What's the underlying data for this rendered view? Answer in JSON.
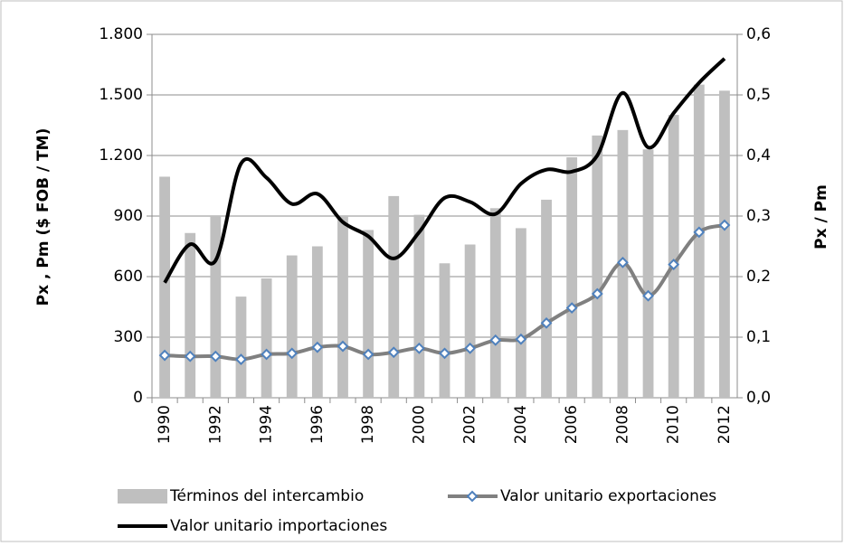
{
  "chart_data": {
    "type": "bar-line",
    "y_label": "Px , Pm ($ FOB / TM)",
    "y2_label": "Px / Pm",
    "categories": [
      "1990",
      "1991",
      "1992",
      "1993",
      "1994",
      "1995",
      "1996",
      "1997",
      "1998",
      "1999",
      "2000",
      "2001",
      "2002",
      "2003",
      "2004",
      "2005",
      "2006",
      "2007",
      "2008",
      "2009",
      "2010",
      "2011",
      "2012"
    ],
    "x_tick_every": 2,
    "ylim": [
      0,
      1800
    ],
    "yticks": [
      0,
      300,
      600,
      900,
      {
        "value": 1200,
        "label": "1.200"
      },
      {
        "value": 1500,
        "label": "1.500"
      },
      {
        "value": 1800,
        "label": "1.800"
      }
    ],
    "y2lim": [
      0,
      0.6
    ],
    "y2ticks": [
      {
        "value": 0,
        "label": "0,0"
      },
      {
        "value": 0.1,
        "label": "0,1"
      },
      {
        "value": 0.2,
        "label": "0,2"
      },
      {
        "value": 0.3,
        "label": "0,3"
      },
      {
        "value": 0.4,
        "label": "0,4"
      },
      {
        "value": 0.5,
        "label": "0,5"
      },
      {
        "value": 0.6,
        "label": "0,6"
      }
    ],
    "series": [
      {
        "name": "Términos del intercambio",
        "type": "bar",
        "axis": "y2",
        "color": "#bfbfbf",
        "values": [
          0.365,
          0.272,
          0.3,
          0.167,
          0.197,
          0.235,
          0.25,
          0.3,
          0.277,
          0.333,
          0.302,
          0.222,
          0.253,
          0.313,
          0.28,
          0.327,
          0.397,
          0.433,
          0.442,
          0.41,
          0.467,
          0.517,
          0.507
        ]
      },
      {
        "name": "Valor unitario exportaciones",
        "type": "line",
        "color": "#808080",
        "marker_color": "#4f81bd",
        "values": [
          210,
          205,
          205,
          190,
          215,
          220,
          250,
          255,
          215,
          225,
          245,
          220,
          245,
          285,
          290,
          370,
          445,
          515,
          670,
          505,
          660,
          820,
          855
        ]
      },
      {
        "name": "Valor unitario importaciones",
        "type": "line",
        "color": "#000000",
        "values": [
          570,
          760,
          680,
          1160,
          1090,
          960,
          1010,
          870,
          800,
          690,
          820,
          990,
          970,
          910,
          1060,
          1130,
          1120,
          1200,
          1510,
          1240,
          1410,
          1560,
          1680
        ]
      }
    ]
  }
}
